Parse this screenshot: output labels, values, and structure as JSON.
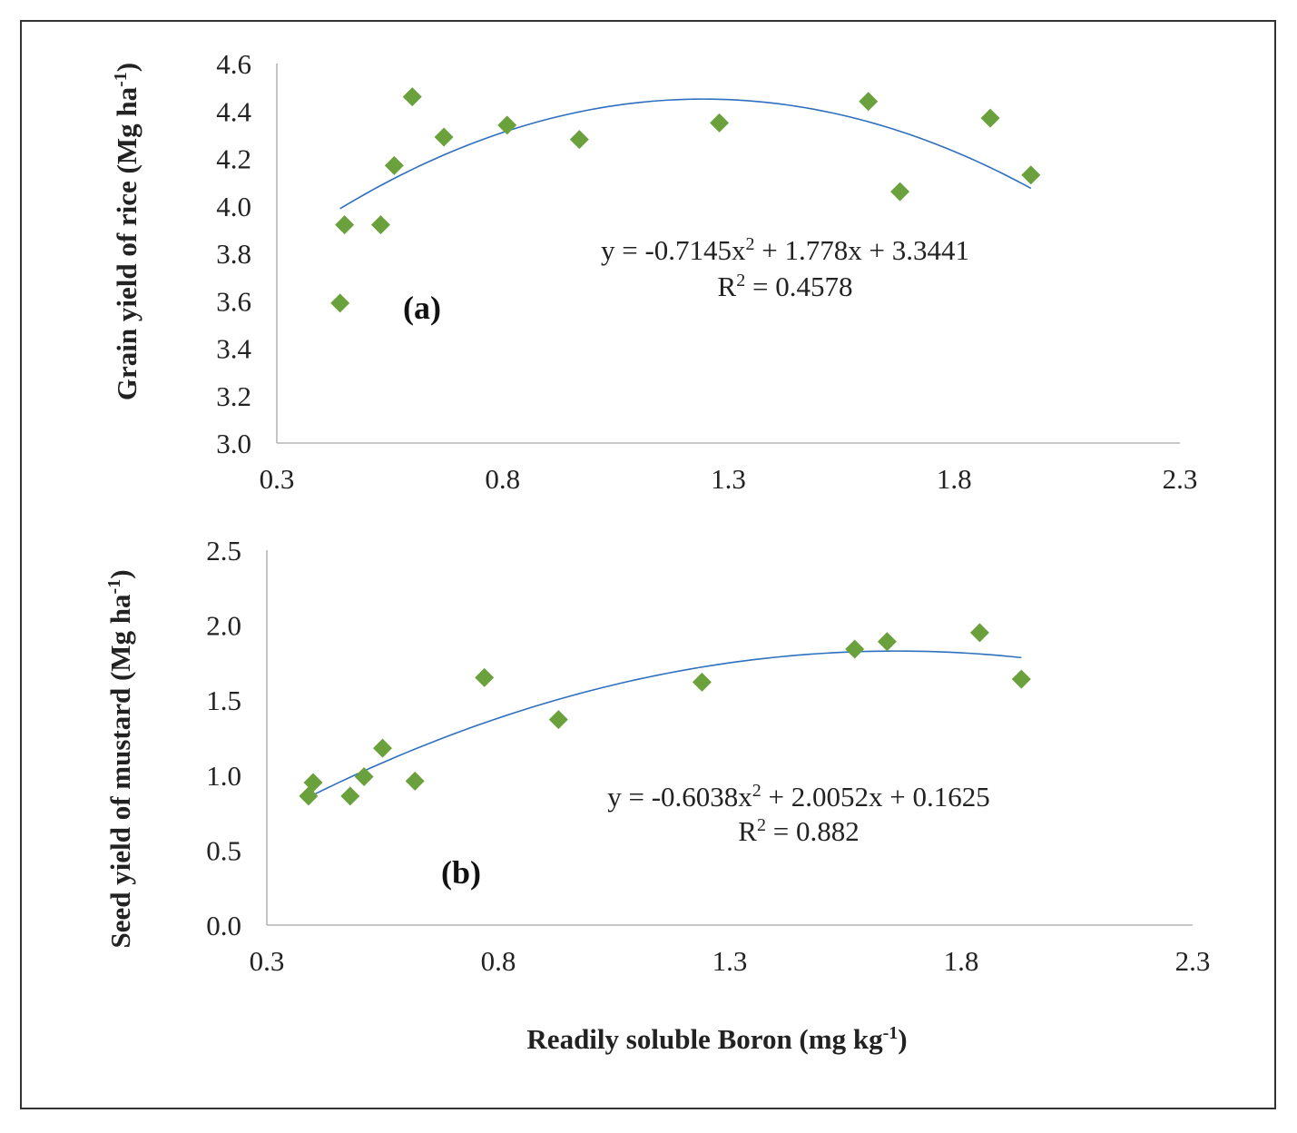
{
  "chart_data": [
    {
      "type": "scatter",
      "panel_label": "(a)",
      "ylabel": "Grain yield of rice (Mg ha",
      "ylabel_sup": "-1",
      "ylabel_close": ")",
      "xlim": [
        0.3,
        2.3
      ],
      "ylim": [
        3.0,
        4.6
      ],
      "xticks": [
        "0.3",
        "0.8",
        "1.3",
        "1.8",
        "2.3"
      ],
      "yticks": [
        "3.0",
        "3.2",
        "3.4",
        "3.6",
        "3.8",
        "4.0",
        "4.2",
        "4.4",
        "4.6"
      ],
      "points": [
        {
          "x": 0.44,
          "y": 3.59
        },
        {
          "x": 0.45,
          "y": 3.92
        },
        {
          "x": 0.53,
          "y": 3.92
        },
        {
          "x": 0.56,
          "y": 4.17
        },
        {
          "x": 0.6,
          "y": 4.46
        },
        {
          "x": 0.67,
          "y": 4.29
        },
        {
          "x": 0.81,
          "y": 4.34
        },
        {
          "x": 0.97,
          "y": 4.28
        },
        {
          "x": 1.28,
          "y": 4.35
        },
        {
          "x": 1.61,
          "y": 4.44
        },
        {
          "x": 1.68,
          "y": 4.06
        },
        {
          "x": 1.88,
          "y": 4.37
        },
        {
          "x": 1.97,
          "y": 4.13
        }
      ],
      "trendline": {
        "a": -0.7145,
        "b": 1.778,
        "c": 3.3441,
        "x_from": 0.44,
        "x_to": 1.97
      },
      "equation": {
        "prefix": "y = -0.7145x",
        "sup": "2",
        "suffix": " + 1.778x + 3.3441"
      },
      "r2": {
        "prefix": "R",
        "sup": "2",
        "suffix": " = 0.4578"
      }
    },
    {
      "type": "scatter",
      "panel_label": "(b)",
      "ylabel": "Seed yield of mustard (Mg ha",
      "ylabel_sup": "-1",
      "ylabel_close": ")",
      "xlabel": "Readily soluble Boron (mg kg",
      "xlabel_sup": "-1",
      "xlabel_close": ")",
      "xlim": [
        0.3,
        2.3
      ],
      "ylim": [
        0.0,
        2.5
      ],
      "xticks": [
        "0.3",
        "0.8",
        "1.3",
        "1.8",
        "2.3"
      ],
      "yticks": [
        "0.0",
        "0.5",
        "1.0",
        "1.5",
        "2.0",
        "2.5"
      ],
      "points": [
        {
          "x": 0.39,
          "y": 0.86
        },
        {
          "x": 0.4,
          "y": 0.95
        },
        {
          "x": 0.48,
          "y": 0.86
        },
        {
          "x": 0.51,
          "y": 0.99
        },
        {
          "x": 0.55,
          "y": 1.18
        },
        {
          "x": 0.62,
          "y": 0.96
        },
        {
          "x": 0.77,
          "y": 1.65
        },
        {
          "x": 0.93,
          "y": 1.37
        },
        {
          "x": 1.24,
          "y": 1.62
        },
        {
          "x": 1.57,
          "y": 1.84
        },
        {
          "x": 1.64,
          "y": 1.89
        },
        {
          "x": 1.84,
          "y": 1.95
        },
        {
          "x": 1.93,
          "y": 1.64
        }
      ],
      "trendline": {
        "a": -0.6038,
        "b": 2.0052,
        "c": 0.1625,
        "x_from": 0.39,
        "x_to": 1.93
      },
      "equation": {
        "prefix": "y = -0.6038x",
        "sup": "2",
        "suffix": " + 2.0052x + 0.1625"
      },
      "r2": {
        "prefix": "R",
        "sup": "2",
        "suffix": " = 0.882"
      }
    }
  ]
}
